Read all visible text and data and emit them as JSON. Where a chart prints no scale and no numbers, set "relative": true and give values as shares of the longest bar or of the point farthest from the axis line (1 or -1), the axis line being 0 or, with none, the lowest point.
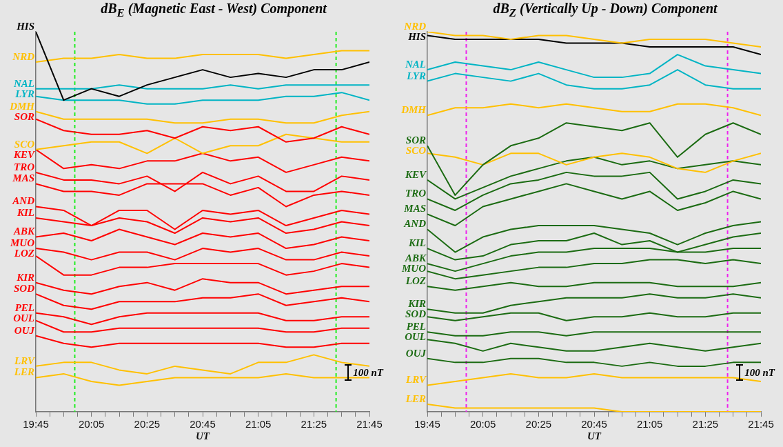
{
  "chart_data": [
    {
      "type": "line",
      "title": "dB$_{E}$ (Magnetic East - West) Component",
      "xlabel": "UT",
      "relative": true,
      "x": [
        19.75,
        19.9167,
        20.0833,
        20.25,
        20.4167,
        20.5833,
        20.75,
        20.9167,
        21.0833,
        21.25,
        21.4167,
        21.5833,
        21.75
      ],
      "xlim": [
        19.75,
        21.75
      ],
      "xticks": [
        {
          "value": 19.75,
          "label": "19:45"
        },
        {
          "value": 19.8333,
          "label": null
        },
        {
          "value": 19.9167,
          "label": null
        },
        {
          "value": 20,
          "label": null
        },
        {
          "value": 20.0833,
          "label": "20:05"
        },
        {
          "value": 20.1667,
          "label": null
        },
        {
          "value": 20.25,
          "label": null
        },
        {
          "value": 20.3333,
          "label": null
        },
        {
          "value": 20.4167,
          "label": "20:25"
        },
        {
          "value": 20.5,
          "label": null
        },
        {
          "value": 20.5833,
          "label": null
        },
        {
          "value": 20.6667,
          "label": null
        },
        {
          "value": 20.75,
          "label": "20:45"
        },
        {
          "value": 20.8333,
          "label": null
        },
        {
          "value": 20.9167,
          "label": null
        },
        {
          "value": 21,
          "label": null
        },
        {
          "value": 21.0833,
          "label": "21:05"
        },
        {
          "value": 21.1667,
          "label": null
        },
        {
          "value": 21.25,
          "label": null
        },
        {
          "value": 21.3333,
          "label": null
        },
        {
          "value": 21.4167,
          "label": "21:25"
        },
        {
          "value": 21.5,
          "label": null
        },
        {
          "value": 21.5833,
          "label": null
        },
        {
          "value": 21.6667,
          "label": null
        },
        {
          "value": 21.75,
          "label": "21:45"
        }
      ],
      "series": [
        {
          "name": "HIS",
          "color": "#000000",
          "values": [
            1.0,
            0.82,
            0.85,
            0.83,
            0.86,
            0.88,
            0.9,
            0.88,
            0.89,
            0.88,
            0.9,
            0.9,
            0.92
          ]
        },
        {
          "name": "NRD",
          "color": "#ffc000",
          "values": [
            0.92,
            0.93,
            0.93,
            0.94,
            0.93,
            0.93,
            0.94,
            0.94,
            0.94,
            0.93,
            0.94,
            0.95,
            0.95
          ]
        },
        {
          "name": "NAL",
          "color": "#00b4c4",
          "values": [
            0.85,
            0.85,
            0.85,
            0.86,
            0.85,
            0.85,
            0.85,
            0.86,
            0.85,
            0.86,
            0.86,
            0.86,
            0.86
          ]
        },
        {
          "name": "LYR",
          "color": "#00b4c4",
          "values": [
            0.83,
            0.82,
            0.82,
            0.82,
            0.81,
            0.81,
            0.82,
            0.82,
            0.82,
            0.83,
            0.83,
            0.84,
            0.82
          ]
        },
        {
          "name": "DMH",
          "color": "#ffc000",
          "values": [
            0.79,
            0.77,
            0.77,
            0.77,
            0.77,
            0.76,
            0.76,
            0.77,
            0.77,
            0.76,
            0.76,
            0.78,
            0.79
          ]
        },
        {
          "name": "SOR",
          "color": "#ff0000",
          "values": [
            0.77,
            0.74,
            0.73,
            0.73,
            0.74,
            0.72,
            0.75,
            0.74,
            0.75,
            0.71,
            0.72,
            0.75,
            0.73
          ]
        },
        {
          "name": "SCO",
          "color": "#ffc000",
          "values": [
            0.69,
            0.7,
            0.71,
            0.71,
            0.68,
            0.72,
            0.68,
            0.7,
            0.7,
            0.73,
            0.72,
            0.71,
            0.71
          ]
        },
        {
          "name": "KEV",
          "color": "#ff0000",
          "values": [
            0.69,
            0.64,
            0.65,
            0.64,
            0.66,
            0.66,
            0.68,
            0.66,
            0.67,
            0.63,
            0.65,
            0.67,
            0.66
          ]
        },
        {
          "name": "TRO",
          "color": "#ff0000",
          "values": [
            0.63,
            0.61,
            0.61,
            0.6,
            0.62,
            0.58,
            0.63,
            0.6,
            0.62,
            0.58,
            0.58,
            0.62,
            0.61
          ]
        },
        {
          "name": "MAS",
          "color": "#ff0000",
          "values": [
            0.6,
            0.58,
            0.58,
            0.57,
            0.6,
            0.6,
            0.6,
            0.57,
            0.59,
            0.54,
            0.57,
            0.58,
            0.57
          ]
        },
        {
          "name": "AND",
          "color": "#ff0000",
          "values": [
            0.54,
            0.53,
            0.49,
            0.53,
            0.53,
            0.48,
            0.53,
            0.52,
            0.53,
            0.49,
            0.51,
            0.53,
            0.52
          ]
        },
        {
          "name": "KIL",
          "color": "#ff0000",
          "values": [
            0.51,
            0.5,
            0.49,
            0.51,
            0.5,
            0.47,
            0.51,
            0.5,
            0.51,
            0.47,
            0.48,
            0.5,
            0.49
          ]
        },
        {
          "name": "ABK",
          "color": "#ff0000",
          "values": [
            0.46,
            0.47,
            0.45,
            0.48,
            0.46,
            0.44,
            0.47,
            0.46,
            0.47,
            0.43,
            0.44,
            0.46,
            0.45
          ]
        },
        {
          "name": "MUO",
          "color": "#ff0000",
          "values": [
            0.43,
            0.42,
            0.4,
            0.42,
            0.42,
            0.4,
            0.43,
            0.42,
            0.43,
            0.4,
            0.4,
            0.42,
            0.41
          ]
        },
        {
          "name": "LOZ",
          "color": "#ff0000",
          "values": [
            0.41,
            0.36,
            0.36,
            0.38,
            0.38,
            0.39,
            0.39,
            0.39,
            0.39,
            0.36,
            0.37,
            0.39,
            0.38
          ]
        },
        {
          "name": "KIR",
          "color": "#ff0000",
          "values": [
            0.34,
            0.32,
            0.31,
            0.33,
            0.34,
            0.32,
            0.35,
            0.34,
            0.34,
            0.31,
            0.32,
            0.33,
            0.33
          ]
        },
        {
          "name": "SOD",
          "color": "#ff0000",
          "values": [
            0.31,
            0.28,
            0.27,
            0.29,
            0.29,
            0.29,
            0.3,
            0.3,
            0.31,
            0.28,
            0.29,
            0.3,
            0.29
          ]
        },
        {
          "name": "PEL",
          "color": "#ff0000",
          "values": [
            0.26,
            0.25,
            0.23,
            0.25,
            0.26,
            0.26,
            0.26,
            0.26,
            0.26,
            0.24,
            0.24,
            0.25,
            0.25
          ]
        },
        {
          "name": "OUL",
          "color": "#ff0000",
          "values": [
            0.24,
            0.21,
            0.21,
            0.22,
            0.22,
            0.22,
            0.22,
            0.22,
            0.22,
            0.21,
            0.21,
            0.22,
            0.22
          ]
        },
        {
          "name": "OUJ",
          "color": "#ff0000",
          "values": [
            0.2,
            0.18,
            0.17,
            0.18,
            0.18,
            0.18,
            0.18,
            0.18,
            0.18,
            0.17,
            0.17,
            0.18,
            0.18
          ]
        },
        {
          "name": "LRV",
          "color": "#ffc000",
          "values": [
            0.12,
            0.13,
            0.13,
            0.11,
            0.1,
            0.12,
            0.11,
            0.1,
            0.13,
            0.13,
            0.15,
            0.13,
            0.12
          ]
        },
        {
          "name": "LER",
          "color": "#ffc000",
          "values": [
            0.09,
            0.1,
            0.08,
            0.07,
            0.08,
            0.09,
            0.09,
            0.09,
            0.09,
            0.1,
            0.09,
            0.09,
            0.09
          ]
        }
      ],
      "ref_lines": [
        {
          "axis": "x",
          "value": 19.9833,
          "color": "#22ee22",
          "line_style": "dashed"
        },
        {
          "axis": "x",
          "value": 21.55,
          "color": "#22ee22",
          "line_style": "dashed"
        }
      ],
      "annotations": [
        "100 nT"
      ]
    },
    {
      "type": "line",
      "title": "dB$_{Z}$ (Vertically Up - Down) Component",
      "xlabel": "UT",
      "relative": true,
      "x": [
        19.75,
        19.9167,
        20.0833,
        20.25,
        20.4167,
        20.5833,
        20.75,
        20.9167,
        21.0833,
        21.25,
        21.4167,
        21.5833,
        21.75
      ],
      "xlim": [
        19.75,
        21.75
      ],
      "xticks": [
        {
          "value": 19.75,
          "label": "19:45"
        },
        {
          "value": 19.8333,
          "label": null
        },
        {
          "value": 19.9167,
          "label": null
        },
        {
          "value": 20,
          "label": null
        },
        {
          "value": 20.0833,
          "label": "20:05"
        },
        {
          "value": 20.1667,
          "label": null
        },
        {
          "value": 20.25,
          "label": null
        },
        {
          "value": 20.3333,
          "label": null
        },
        {
          "value": 20.4167,
          "label": "20:25"
        },
        {
          "value": 20.5,
          "label": null
        },
        {
          "value": 20.5833,
          "label": null
        },
        {
          "value": 20.6667,
          "label": null
        },
        {
          "value": 20.75,
          "label": "20:45"
        },
        {
          "value": 20.8333,
          "label": null
        },
        {
          "value": 20.9167,
          "label": null
        },
        {
          "value": 21,
          "label": null
        },
        {
          "value": 21.0833,
          "label": "21:05"
        },
        {
          "value": 21.1667,
          "label": null
        },
        {
          "value": 21.25,
          "label": null
        },
        {
          "value": 21.3333,
          "label": null
        },
        {
          "value": 21.4167,
          "label": "21:25"
        },
        {
          "value": 21.5,
          "label": null
        },
        {
          "value": 21.5833,
          "label": null
        },
        {
          "value": 21.6667,
          "label": null
        },
        {
          "value": 21.75,
          "label": "21:45"
        }
      ],
      "series": [
        {
          "name": "NRD",
          "color": "#ffc000",
          "values": [
            1.0,
            0.99,
            0.99,
            0.98,
            0.99,
            0.99,
            0.98,
            0.97,
            0.98,
            0.98,
            0.98,
            0.97,
            0.96
          ]
        },
        {
          "name": "HIS",
          "color": "#000000",
          "values": [
            0.99,
            0.98,
            0.98,
            0.98,
            0.98,
            0.97,
            0.97,
            0.97,
            0.96,
            0.96,
            0.96,
            0.96,
            0.94
          ]
        },
        {
          "name": "NAL",
          "color": "#00b4c4",
          "values": [
            0.9,
            0.92,
            0.91,
            0.9,
            0.92,
            0.9,
            0.88,
            0.88,
            0.89,
            0.94,
            0.91,
            0.9,
            0.89
          ]
        },
        {
          "name": "LYR",
          "color": "#00b4c4",
          "values": [
            0.87,
            0.89,
            0.88,
            0.87,
            0.89,
            0.86,
            0.85,
            0.85,
            0.86,
            0.9,
            0.86,
            0.85,
            0.85
          ]
        },
        {
          "name": "DMH",
          "color": "#ffc000",
          "values": [
            0.78,
            0.8,
            0.8,
            0.81,
            0.8,
            0.81,
            0.8,
            0.79,
            0.79,
            0.81,
            0.81,
            0.8,
            0.78
          ]
        },
        {
          "name": "SOR",
          "color": "#1b6b12",
          "values": [
            0.7,
            0.57,
            0.65,
            0.7,
            0.72,
            0.76,
            0.75,
            0.74,
            0.76,
            0.67,
            0.73,
            0.76,
            0.73
          ]
        },
        {
          "name": "SCO",
          "color": "#ffc000",
          "values": [
            0.68,
            0.67,
            0.65,
            0.68,
            0.68,
            0.65,
            0.67,
            0.68,
            0.67,
            0.64,
            0.63,
            0.66,
            0.68
          ]
        },
        {
          "name": "KEV",
          "color": "#1b6b12",
          "values": [
            0.61,
            0.56,
            0.59,
            0.62,
            0.64,
            0.66,
            0.67,
            0.65,
            0.66,
            0.64,
            0.65,
            0.66,
            0.65
          ]
        },
        {
          "name": "TRO",
          "color": "#1b6b12",
          "values": [
            0.56,
            0.53,
            0.57,
            0.6,
            0.61,
            0.63,
            0.62,
            0.62,
            0.63,
            0.56,
            0.58,
            0.61,
            0.6
          ]
        },
        {
          "name": "MAS",
          "color": "#1b6b12",
          "values": [
            0.52,
            0.49,
            0.54,
            0.56,
            0.58,
            0.6,
            0.58,
            0.56,
            0.58,
            0.53,
            0.55,
            0.58,
            0.56
          ]
        },
        {
          "name": "AND",
          "color": "#1b6b12",
          "values": [
            0.48,
            0.42,
            0.46,
            0.48,
            0.49,
            0.49,
            0.49,
            0.48,
            0.47,
            0.44,
            0.47,
            0.49,
            0.5
          ]
        },
        {
          "name": "KIL",
          "color": "#1b6b12",
          "values": [
            0.43,
            0.4,
            0.41,
            0.44,
            0.45,
            0.45,
            0.47,
            0.44,
            0.45,
            0.42,
            0.44,
            0.46,
            0.47
          ]
        },
        {
          "name": "ABK",
          "color": "#1b6b12",
          "values": [
            0.39,
            0.37,
            0.39,
            0.41,
            0.42,
            0.42,
            0.43,
            0.43,
            0.43,
            0.42,
            0.42,
            0.43,
            0.43
          ]
        },
        {
          "name": "MUO",
          "color": "#1b6b12",
          "values": [
            0.37,
            0.35,
            0.36,
            0.37,
            0.38,
            0.38,
            0.39,
            0.39,
            0.4,
            0.4,
            0.39,
            0.4,
            0.39
          ]
        },
        {
          "name": "LOZ",
          "color": "#1b6b12",
          "values": [
            0.33,
            0.32,
            0.33,
            0.34,
            0.33,
            0.33,
            0.34,
            0.34,
            0.34,
            0.33,
            0.33,
            0.33,
            0.34
          ]
        },
        {
          "name": "KIR",
          "color": "#1b6b12",
          "values": [
            0.27,
            0.26,
            0.26,
            0.28,
            0.29,
            0.3,
            0.3,
            0.3,
            0.31,
            0.3,
            0.3,
            0.31,
            0.3
          ]
        },
        {
          "name": "SOD",
          "color": "#1b6b12",
          "values": [
            0.25,
            0.24,
            0.25,
            0.26,
            0.26,
            0.24,
            0.25,
            0.25,
            0.26,
            0.25,
            0.25,
            0.26,
            0.26
          ]
        },
        {
          "name": "PEL",
          "color": "#1b6b12",
          "values": [
            0.21,
            0.2,
            0.2,
            0.21,
            0.21,
            0.2,
            0.21,
            0.21,
            0.21,
            0.21,
            0.21,
            0.21,
            0.21
          ]
        },
        {
          "name": "OUL",
          "color": "#1b6b12",
          "values": [
            0.19,
            0.18,
            0.16,
            0.18,
            0.17,
            0.16,
            0.16,
            0.17,
            0.18,
            0.17,
            0.16,
            0.17,
            0.18
          ]
        },
        {
          "name": "OUJ",
          "color": "#1b6b12",
          "values": [
            0.14,
            0.13,
            0.13,
            0.14,
            0.14,
            0.13,
            0.13,
            0.12,
            0.13,
            0.12,
            0.12,
            0.13,
            0.13
          ]
        },
        {
          "name": "LRV",
          "color": "#ffc000",
          "values": [
            0.07,
            0.08,
            0.09,
            0.1,
            0.09,
            0.09,
            0.1,
            0.09,
            0.09,
            0.09,
            0.09,
            0.09,
            0.08
          ]
        },
        {
          "name": "LER",
          "color": "#ffc000",
          "values": [
            0.02,
            0.01,
            0.01,
            0.01,
            0.01,
            0.01,
            0.01,
            0.0,
            0.0,
            0.0,
            0.0,
            0.0,
            0.0
          ]
        }
      ],
      "ref_lines": [
        {
          "axis": "x",
          "value": 19.9833,
          "color": "#ee22ee",
          "line_style": "dashed"
        },
        {
          "axis": "x",
          "value": 21.55,
          "color": "#ee22ee",
          "line_style": "dashed"
        }
      ],
      "annotations": [
        "100 nT"
      ]
    }
  ]
}
